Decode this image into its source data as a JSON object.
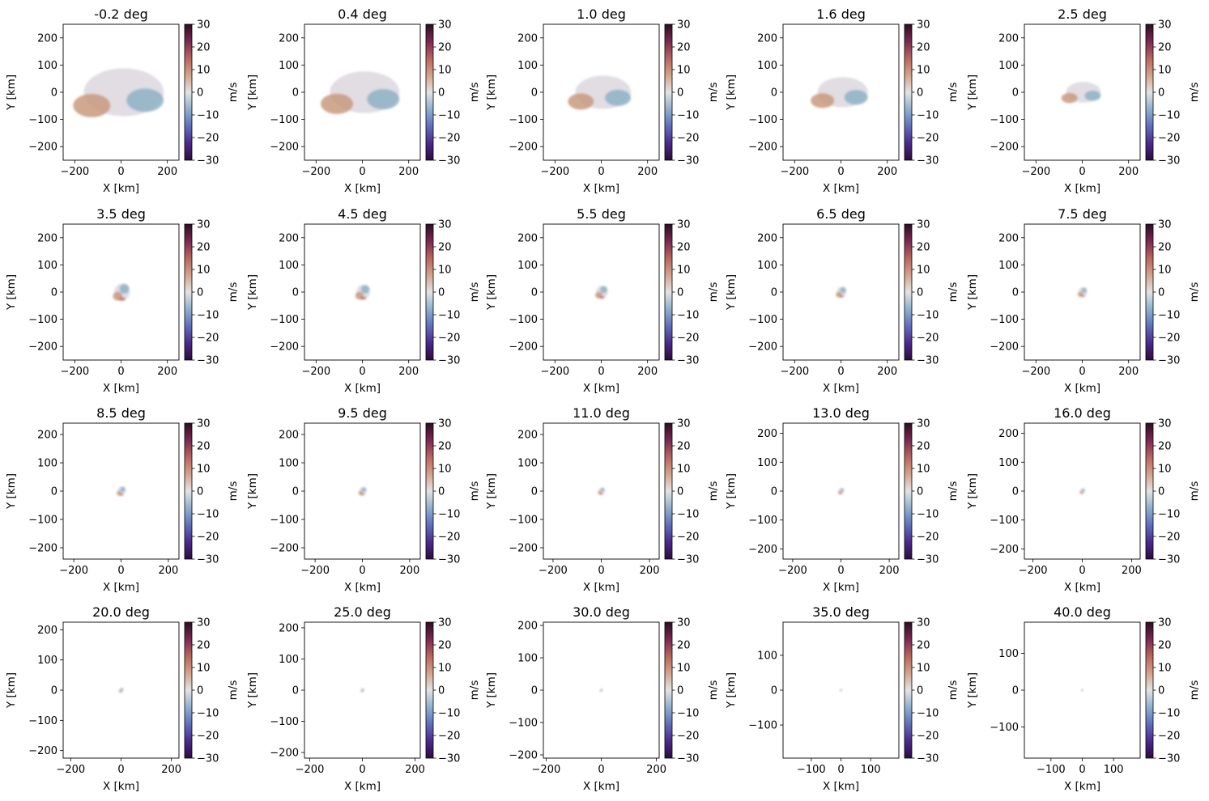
{
  "colorbar": {
    "label": "m/s",
    "ticks": [
      30,
      20,
      10,
      0,
      -10,
      -20,
      -30
    ],
    "tick_labels": [
      "30",
      "20",
      "10",
      "0",
      "−10",
      "−20",
      "−30"
    ],
    "range": [
      -30,
      30
    ],
    "colormap": [
      "#2d0b3f",
      "#4b2a8c",
      "#5f6fbc",
      "#8fb0cd",
      "#e3e3e3",
      "#d3a48c",
      "#b8665e",
      "#7a2950",
      "#2e0d24"
    ]
  },
  "chart_data": [
    {
      "type": "heatmap",
      "title": "-0.2 deg",
      "xlabel": "X [km]",
      "ylabel": "Y [km]",
      "xlim": [
        -250,
        250
      ],
      "ylim": [
        -250,
        250
      ],
      "xticks": [
        "−200",
        "0",
        "200"
      ],
      "yticks": [
        "200",
        "100",
        "0",
        "−100",
        "−200"
      ],
      "echo_extent_km": 230
    },
    {
      "type": "heatmap",
      "title": "0.4 deg",
      "xlabel": "X [km]",
      "ylabel": "Y [km]",
      "xlim": [
        -250,
        250
      ],
      "ylim": [
        -250,
        250
      ],
      "xticks": [
        "−200",
        "0",
        "200"
      ],
      "yticks": [
        "200",
        "100",
        "0",
        "−100",
        "−200"
      ],
      "echo_extent_km": 200
    },
    {
      "type": "heatmap",
      "title": "1.0 deg",
      "xlabel": "X [km]",
      "ylabel": "Y [km]",
      "xlim": [
        -250,
        250
      ],
      "ylim": [
        -250,
        250
      ],
      "xticks": [
        "−200",
        "0",
        "200"
      ],
      "yticks": [
        "200",
        "100",
        "0",
        "−100",
        "−200"
      ],
      "echo_extent_km": 160
    },
    {
      "type": "heatmap",
      "title": "1.6 deg",
      "xlabel": "X [km]",
      "ylabel": "Y [km]",
      "xlim": [
        -250,
        250
      ],
      "ylim": [
        -250,
        250
      ],
      "xticks": [
        "−200",
        "0",
        "200"
      ],
      "yticks": [
        "200",
        "100",
        "0",
        "−100",
        "−200"
      ],
      "echo_extent_km": 145
    },
    {
      "type": "heatmap",
      "title": "2.5 deg",
      "xlabel": "X [km]",
      "ylabel": "Y [km]",
      "xlim": [
        -250,
        250
      ],
      "ylim": [
        -250,
        250
      ],
      "xticks": [
        "−200",
        "0",
        "200"
      ],
      "yticks": [
        "200",
        "100",
        "0",
        "−100",
        "−200"
      ],
      "echo_extent_km": 100
    },
    {
      "type": "heatmap",
      "title": "3.5 deg",
      "xlabel": "X [km]",
      "ylabel": "Y [km]",
      "xlim": [
        -250,
        250
      ],
      "ylim": [
        -250,
        250
      ],
      "xticks": [
        "−200",
        "0",
        "200"
      ],
      "yticks": [
        "200",
        "100",
        "0",
        "−100",
        "−200"
      ],
      "echo_extent_km": 80
    },
    {
      "type": "heatmap",
      "title": "4.5 deg",
      "xlabel": "X [km]",
      "ylabel": "Y [km]",
      "xlim": [
        -250,
        250
      ],
      "ylim": [
        -250,
        250
      ],
      "xticks": [
        "−200",
        "0",
        "200"
      ],
      "yticks": [
        "200",
        "100",
        "0",
        "−100",
        "−200"
      ],
      "echo_extent_km": 70
    },
    {
      "type": "heatmap",
      "title": "5.5 deg",
      "xlabel": "X [km]",
      "ylabel": "Y [km]",
      "xlim": [
        -250,
        250
      ],
      "ylim": [
        -250,
        250
      ],
      "xticks": [
        "−200",
        "0",
        "200"
      ],
      "yticks": [
        "200",
        "100",
        "0",
        "−100",
        "−200"
      ],
      "echo_extent_km": 60
    },
    {
      "type": "heatmap",
      "title": "6.5 deg",
      "xlabel": "X [km]",
      "ylabel": "Y [km]",
      "xlim": [
        -250,
        250
      ],
      "ylim": [
        -250,
        250
      ],
      "xticks": [
        "−200",
        "0",
        "200"
      ],
      "yticks": [
        "200",
        "100",
        "0",
        "−100",
        "−200"
      ],
      "echo_extent_km": 50
    },
    {
      "type": "heatmap",
      "title": "7.5 deg",
      "xlabel": "X [km]",
      "ylabel": "Y [km]",
      "xlim": [
        -250,
        250
      ],
      "ylim": [
        -250,
        250
      ],
      "xticks": [
        "−200",
        "0",
        "200"
      ],
      "yticks": [
        "200",
        "100",
        "0",
        "−100",
        "−200"
      ],
      "echo_extent_km": 45
    },
    {
      "type": "heatmap",
      "title": "8.5 deg",
      "xlabel": "X [km]",
      "ylabel": "Y [km]",
      "xlim": [
        -245,
        245
      ],
      "ylim": [
        -240,
        240
      ],
      "xticks": [
        "−200",
        "0",
        "200"
      ],
      "yticks": [
        "200",
        "100",
        "0",
        "−100",
        "−200"
      ],
      "echo_extent_km": 42
    },
    {
      "type": "heatmap",
      "title": "9.5 deg",
      "xlabel": "X [km]",
      "ylabel": "Y [km]",
      "xlim": [
        -245,
        245
      ],
      "ylim": [
        -240,
        240
      ],
      "xticks": [
        "−200",
        "0",
        "200"
      ],
      "yticks": [
        "200",
        "100",
        "0",
        "−100",
        "−200"
      ],
      "echo_extent_km": 38
    },
    {
      "type": "heatmap",
      "title": "11.0 deg",
      "xlabel": "X [km]",
      "ylabel": "Y [km]",
      "xlim": [
        -240,
        240
      ],
      "ylim": [
        -240,
        240
      ],
      "xticks": [
        "−200",
        "0",
        "200"
      ],
      "yticks": [
        "200",
        "100",
        "0",
        "−100",
        "−200"
      ],
      "echo_extent_km": 32
    },
    {
      "type": "heatmap",
      "title": "13.0 deg",
      "xlabel": "X [km]",
      "ylabel": "Y [km]",
      "xlim": [
        -240,
        240
      ],
      "ylim": [
        -235,
        235
      ],
      "xticks": [
        "−200",
        "0",
        "200"
      ],
      "yticks": [
        "200",
        "100",
        "0",
        "−100",
        "−200"
      ],
      "echo_extent_km": 28
    },
    {
      "type": "heatmap",
      "title": "16.0 deg",
      "xlabel": "X [km]",
      "ylabel": "Y [km]",
      "xlim": [
        -235,
        235
      ],
      "ylim": [
        -235,
        235
      ],
      "xticks": [
        "−200",
        "0",
        "200"
      ],
      "yticks": [
        "200",
        "100",
        "0",
        "−100",
        "−200"
      ],
      "echo_extent_km": 24
    },
    {
      "type": "heatmap",
      "title": "20.0 deg",
      "xlabel": "X [km]",
      "ylabel": "Y [km]",
      "xlim": [
        -230,
        230
      ],
      "ylim": [
        -225,
        225
      ],
      "xticks": [
        "−200",
        "0",
        "200"
      ],
      "yticks": [
        "200",
        "100",
        "0",
        "−100",
        "−200"
      ],
      "echo_extent_km": 20
    },
    {
      "type": "heatmap",
      "title": "25.0 deg",
      "xlabel": "X [km]",
      "ylabel": "Y [km]",
      "xlim": [
        -220,
        220
      ],
      "ylim": [
        -218,
        218
      ],
      "xticks": [
        "−200",
        "0",
        "200"
      ],
      "yticks": [
        "200",
        "100",
        "0",
        "−100",
        "−200"
      ],
      "echo_extent_km": 15
    },
    {
      "type": "heatmap",
      "title": "30.0 deg",
      "xlabel": "X [km]",
      "ylabel": "Y [km]",
      "xlim": [
        -210,
        210
      ],
      "ylim": [
        -210,
        210
      ],
      "xticks": [
        "−200",
        "0",
        "200"
      ],
      "yticks": [
        "200",
        "100",
        "0",
        "−100",
        "−200"
      ],
      "echo_extent_km": 12
    },
    {
      "type": "heatmap",
      "title": "35.0 deg",
      "xlabel": "X [km]",
      "ylabel": "Y [km]",
      "xlim": [
        -195,
        195
      ],
      "ylim": [
        -195,
        195
      ],
      "xticks": [
        "−100",
        "0",
        "100"
      ],
      "yticks": [
        "100",
        "0",
        "−100"
      ],
      "echo_extent_km": 9
    },
    {
      "type": "heatmap",
      "title": "40.0 deg",
      "xlabel": "X [km]",
      "ylabel": "Y [km]",
      "xlim": [
        -185,
        185
      ],
      "ylim": [
        -185,
        185
      ],
      "xticks": [
        "−100",
        "0",
        "100"
      ],
      "yticks": [
        "100",
        "0",
        "−100"
      ],
      "echo_extent_km": 7
    }
  ]
}
